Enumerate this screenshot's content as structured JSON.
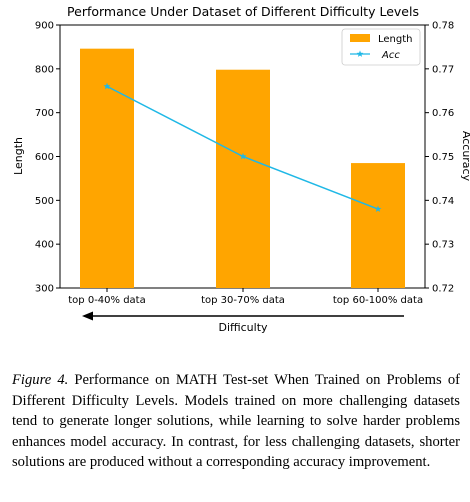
{
  "chart_data": {
    "type": "bar+line",
    "title": "Performance Under Dataset of Different Difficulty Levels",
    "categories": [
      "top 0-40% data",
      "top 30-70% data",
      "top 60-100% data"
    ],
    "xlabel": "Difficulty",
    "series": [
      {
        "name": "Length",
        "kind": "bar",
        "axis": "left",
        "color": "#FFA500",
        "values": [
          846,
          798,
          585
        ]
      },
      {
        "name": "Acc",
        "kind": "line",
        "axis": "right",
        "color": "#1FB8E6",
        "marker": "star",
        "values": [
          0.766,
          0.75,
          0.738
        ]
      }
    ],
    "y_left": {
      "label": "Length",
      "lim": [
        300,
        900
      ],
      "ticks": [
        300,
        400,
        500,
        600,
        700,
        800,
        900
      ]
    },
    "y_right": {
      "label": "Accuracy",
      "lim": [
        0.72,
        0.78
      ],
      "ticks": [
        "0.72",
        "0.73",
        "0.74",
        "0.75",
        "0.76",
        "0.77",
        "0.78"
      ]
    },
    "legend_position": "top-right",
    "grid": false,
    "arrow": "leftward"
  },
  "caption": {
    "label": "Figure 4.",
    "text": "Performance on MATH Test-set When Trained on Problems of Different Difficulty Levels. Models trained on more challenging datasets tend to generate longer solutions, while learning to solve harder problems enhances model accuracy. In contrast, for less challenging datasets, shorter solutions are produced without a corresponding accuracy improvement."
  }
}
